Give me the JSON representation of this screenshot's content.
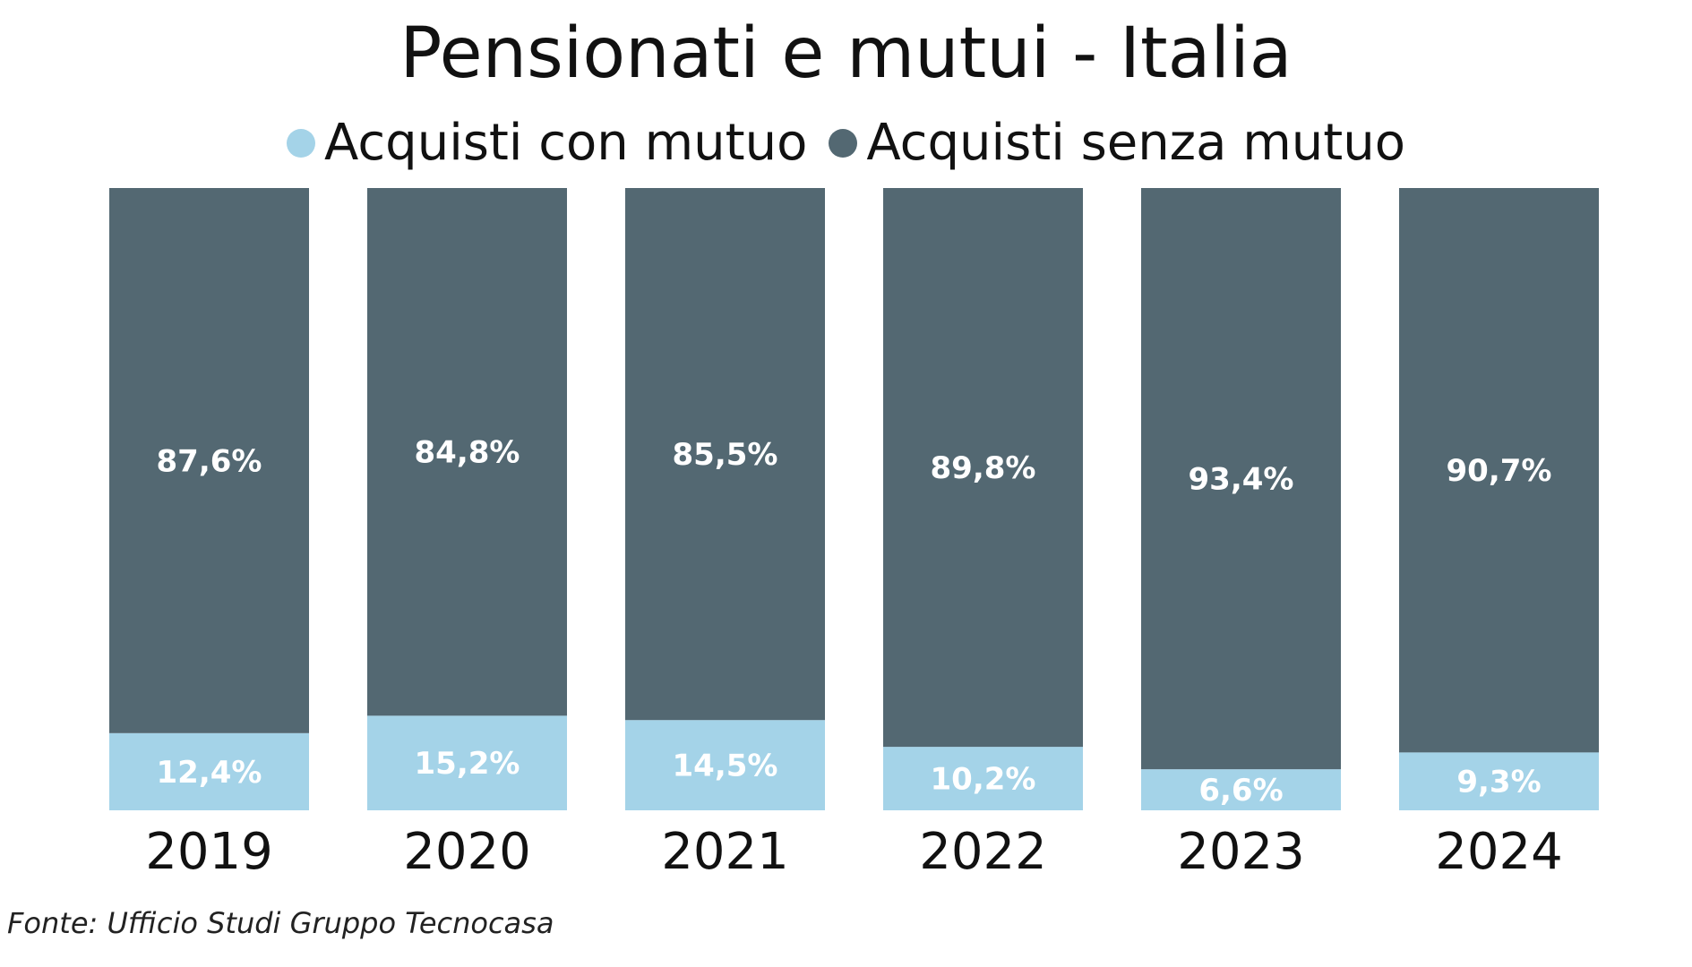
{
  "chart_data": {
    "type": "bar",
    "stacked": true,
    "title": "Pensionati e mutui - Italia",
    "categories": [
      "2019",
      "2020",
      "2021",
      "2022",
      "2023",
      "2024"
    ],
    "series": [
      {
        "name": "Acquisti con mutuo",
        "color": "#a4d3e8",
        "values": [
          12.4,
          15.2,
          14.5,
          10.2,
          6.6,
          9.3
        ],
        "labels": [
          "12,4%",
          "15,2%",
          "14,5%",
          "10,2%",
          "6,6%",
          "9,3%"
        ]
      },
      {
        "name": "Acquisti senza mutuo",
        "color": "#536872",
        "values": [
          87.6,
          84.8,
          85.5,
          89.8,
          93.4,
          90.7
        ],
        "labels": [
          "87,6%",
          "84,8%",
          "85,5%",
          "89,8%",
          "93,4%",
          "90,7%"
        ]
      }
    ],
    "ylim": [
      0,
      100
    ],
    "xlabel": "",
    "ylabel": "",
    "grid": false,
    "legend_position": "top-center"
  },
  "source": "Fonte: Ufficio Studi Gruppo Tecnocasa"
}
